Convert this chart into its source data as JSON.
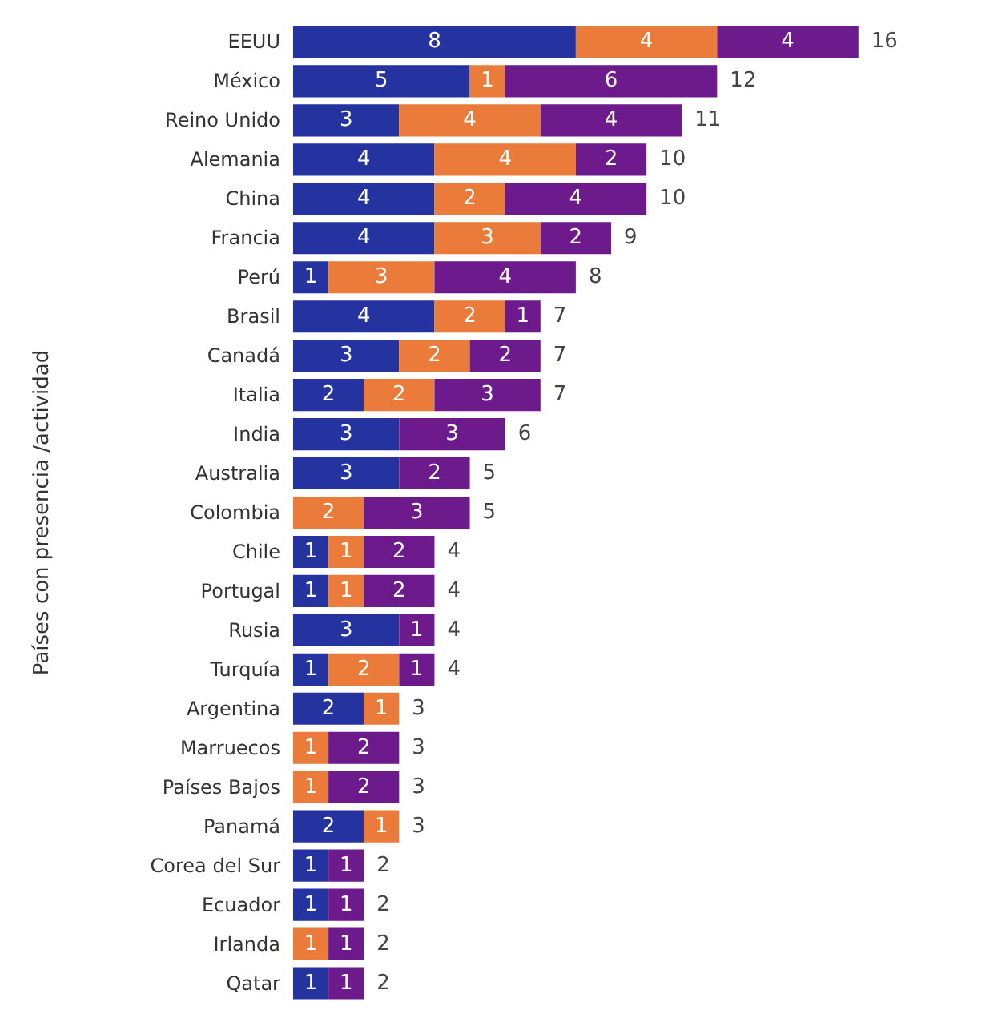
{
  "chart_data": {
    "type": "bar",
    "orientation": "horizontal",
    "stacked": true,
    "data_labels": true,
    "ylabel": "Países con presencia /actividad",
    "categories": [
      "EEUU",
      "México",
      "Reino Unido",
      "Alemania",
      "China",
      "Francia",
      "Perú",
      "Brasil",
      "Canadá",
      "Italia",
      "India",
      "Australia",
      "Colombia",
      "Chile",
      "Portugal",
      "Rusia",
      "Turquía",
      "Argentina",
      "Marruecos",
      "Países Bajos",
      "Panamá",
      "Corea del Sur",
      "Ecuador",
      "Irlanda",
      "Qatar"
    ],
    "series": [
      {
        "color": "#2433a0",
        "values": [
          8,
          5,
          3,
          4,
          4,
          4,
          1,
          4,
          3,
          2,
          3,
          3,
          null,
          1,
          1,
          3,
          1,
          2,
          null,
          null,
          2,
          1,
          1,
          null,
          1
        ]
      },
      {
        "color": "#ea7b3a",
        "values": [
          4,
          1,
          4,
          4,
          2,
          3,
          3,
          2,
          2,
          2,
          null,
          null,
          2,
          1,
          1,
          null,
          2,
          1,
          1,
          1,
          1,
          null,
          null,
          1,
          null
        ]
      },
      {
        "color": "#6c1a8c",
        "values": [
          4,
          6,
          4,
          2,
          4,
          2,
          4,
          1,
          2,
          3,
          3,
          2,
          3,
          2,
          2,
          1,
          1,
          null,
          2,
          2,
          null,
          1,
          1,
          1,
          1
        ]
      }
    ],
    "totals": [
      "16",
      "12",
      "11",
      "10",
      "10",
      "9",
      "8",
      "7",
      "7",
      "7",
      "6",
      "5",
      "5",
      "4",
      "4",
      "4",
      "4",
      "3",
      "3",
      "3",
      "3",
      "2",
      "2",
      "2",
      "2"
    ]
  }
}
